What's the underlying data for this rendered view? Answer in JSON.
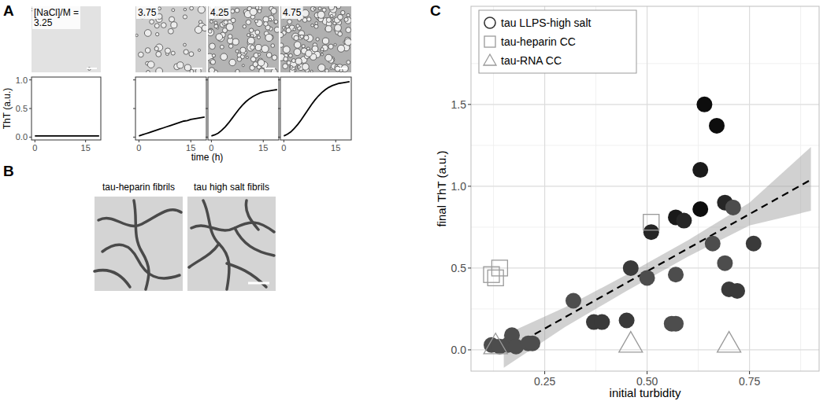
{
  "figure": {
    "panel_labels": [
      "A",
      "B",
      "C"
    ],
    "panel_a": {
      "x_label": "time (h)",
      "y_label": "ThT (a.u.)"
    },
    "panel_b": {
      "captions": [
        "tau-heparin fibrils",
        "tau high salt fibrils"
      ]
    }
  },
  "chart_data": [
    {
      "type": "line",
      "title": "[NaCl]/M = 3.25",
      "color": "#000000",
      "x": [
        0,
        1,
        2,
        3,
        4,
        5,
        6,
        7,
        8,
        9,
        10,
        11,
        12,
        13,
        14,
        15,
        16,
        17,
        18,
        19
      ],
      "values": [
        0.02,
        0.02,
        0.02,
        0.02,
        0.02,
        0.02,
        0.02,
        0.02,
        0.02,
        0.02,
        0.02,
        0.02,
        0.02,
        0.02,
        0.02,
        0.02,
        0.02,
        0.02,
        0.02,
        0.02
      ],
      "xlim": [
        -1,
        19.5
      ],
      "ylim": [
        -0.05,
        1.05
      ],
      "xticks": [
        0,
        15
      ],
      "yticks": [
        {
          "value": 0,
          "label": "0.0"
        },
        0.5,
        {
          "value": 1,
          "label": "1.0"
        }
      ]
    },
    {
      "type": "line",
      "title": "3.75",
      "color": "#000000",
      "x": [
        0,
        1,
        2,
        3,
        4,
        5,
        6,
        7,
        8,
        9,
        10,
        11,
        12,
        13,
        14,
        15,
        16,
        17,
        18,
        19
      ],
      "values": [
        0.02,
        0.04,
        0.06,
        0.08,
        0.1,
        0.12,
        0.14,
        0.16,
        0.18,
        0.2,
        0.22,
        0.24,
        0.26,
        0.28,
        0.29,
        0.31,
        0.32,
        0.33,
        0.34,
        0.35
      ],
      "xlim": [
        -1,
        19.5
      ],
      "ylim": [
        -0.05,
        1.05
      ],
      "xticks": [
        0,
        15
      ],
      "yticks": [
        {
          "value": 0,
          "label": "0.0"
        },
        0.5,
        {
          "value": 1,
          "label": "1.0"
        }
      ],
      "tick_labels": "x"
    },
    {
      "type": "line",
      "title": "4.25",
      "color": "#000000",
      "x": [
        0,
        1,
        2,
        3,
        4,
        5,
        6,
        7,
        8,
        9,
        10,
        11,
        12,
        13,
        14,
        15,
        16,
        17,
        18,
        19
      ],
      "values": [
        0.02,
        0.04,
        0.07,
        0.12,
        0.18,
        0.25,
        0.33,
        0.41,
        0.49,
        0.56,
        0.62,
        0.67,
        0.71,
        0.74,
        0.77,
        0.79,
        0.8,
        0.81,
        0.82,
        0.83
      ],
      "xlim": [
        -1,
        19.5
      ],
      "ylim": [
        -0.05,
        1.05
      ],
      "xticks": [
        0,
        15
      ],
      "yticks": [
        {
          "value": 0,
          "label": "0.0"
        },
        0.5,
        {
          "value": 1,
          "label": "1.0"
        }
      ],
      "tick_labels": "x"
    },
    {
      "type": "line",
      "title": "4.75",
      "color": "#000000",
      "x": [
        0,
        1,
        2,
        3,
        4,
        5,
        6,
        7,
        8,
        9,
        10,
        11,
        12,
        13,
        14,
        15,
        16,
        17,
        18,
        19
      ],
      "values": [
        0.02,
        0.05,
        0.09,
        0.15,
        0.22,
        0.3,
        0.39,
        0.48,
        0.57,
        0.65,
        0.72,
        0.78,
        0.83,
        0.87,
        0.9,
        0.92,
        0.94,
        0.95,
        0.96,
        0.97
      ],
      "xlim": [
        -1,
        19.5
      ],
      "ylim": [
        -0.05,
        1.05
      ],
      "xticks": [
        0,
        15
      ],
      "yticks": [
        {
          "value": 0,
          "label": "0.0"
        },
        0.5,
        {
          "value": 1,
          "label": "1.0"
        }
      ],
      "tick_labels": "x"
    },
    {
      "type": "scatter",
      "x_label": "initial turbidity",
      "y_label": "final ThT (a.u.)",
      "xlim": [
        0.07,
        0.92
      ],
      "ylim": [
        -0.13,
        2.1
      ],
      "xticks": [
        0.25,
        {
          "value": 0.5,
          "label": "0.50"
        },
        0.75
      ],
      "yticks": [
        {
          "value": 0,
          "label": "0.0"
        },
        0.5,
        {
          "value": 1,
          "label": "1.0"
        },
        1.5
      ],
      "grid": true,
      "legend": "top-left",
      "series": [
        {
          "name": "tau LLPS-high salt",
          "marker": "circle",
          "color": "#333333",
          "x": [
            0.12,
            0.14,
            0.16,
            0.17,
            0.18,
            0.21,
            0.22,
            0.32,
            0.37,
            0.39,
            0.45,
            0.46,
            0.5,
            0.51,
            0.56,
            0.57,
            0.57,
            0.57,
            0.59,
            0.63,
            0.63,
            0.64,
            0.66,
            0.67,
            0.69,
            0.69,
            0.7,
            0.71,
            0.72,
            0.76
          ],
          "values": [
            0.03,
            0.02,
            0.03,
            0.09,
            0.02,
            0.04,
            0.04,
            0.3,
            0.17,
            0.17,
            0.18,
            0.5,
            0.44,
            0.72,
            0.16,
            0.16,
            0.46,
            0.81,
            0.79,
            0.86,
            1.1,
            1.5,
            0.65,
            1.37,
            0.9,
            0.53,
            0.37,
            0.87,
            0.36,
            0.65
          ],
          "colors": [
            "#4d4d4d",
            "#4d4d4d",
            "#4d4d4d",
            "#4d4d4d",
            "#4d4d4d",
            "#4d4d4d",
            "#4d4d4d",
            "#4d4d4d",
            "#3a3a3a",
            "#3a3a3a",
            "#3a3a3a",
            "#3a3a3a",
            "#4d4d4d",
            "#262626",
            "#4d4d4d",
            "#4d4d4d",
            "#4d4d4d",
            "#1a1a1a",
            "#262626",
            "#0d0d0d",
            "#1a1a1a",
            "#0d0d0d",
            "#4d4d4d",
            "#0d0d0d",
            "#262626",
            "#4d4d4d",
            "#3a3a3a",
            "#4d4d4d",
            "#3a3a3a",
            "#3a3a3a"
          ]
        },
        {
          "name": "tau-heparin CC",
          "marker": "square-open",
          "color": "#9a9a9a",
          "x": [
            0.12,
            0.13,
            0.14,
            0.51
          ],
          "values": [
            0.46,
            0.44,
            0.5,
            0.78
          ]
        },
        {
          "name": "tau-RNA CC",
          "marker": "triangle-open",
          "color": "#9a9a9a",
          "x": [
            0.13,
            0.46,
            0.7
          ],
          "values": [
            0.03,
            0.04,
            0.04
          ]
        },
        {
          "type": "line",
          "line_style": "dashed",
          "color": "#000000",
          "x": [
            0.15,
            0.3,
            0.45,
            0.6,
            0.75,
            0.9
          ],
          "values": [
            -0.01,
            0.2,
            0.41,
            0.62,
            0.83,
            1.04
          ],
          "lower": [
            -0.11,
            0.14,
            0.36,
            0.57,
            0.76,
            0.85
          ],
          "upper": [
            0.09,
            0.26,
            0.46,
            0.67,
            0.9,
            1.24
          ]
        }
      ]
    }
  ]
}
